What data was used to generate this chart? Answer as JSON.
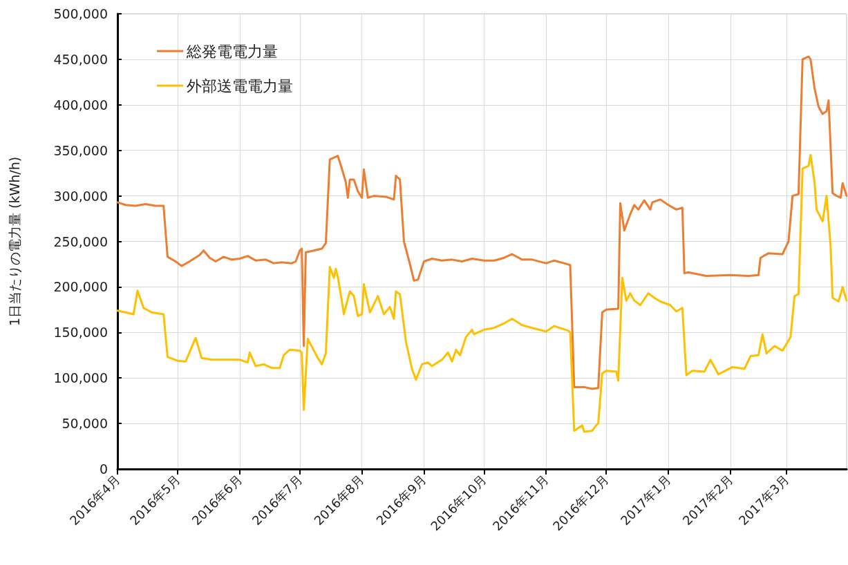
{
  "chart_data": {
    "type": "line",
    "ylabel": "1日当たりの電力量 (kWh/h)",
    "xlim": [
      "2016-04-01",
      "2017-03-31"
    ],
    "xticks": [
      {
        "value": "2016-04-01",
        "label": "2016年4月"
      },
      {
        "value": "2016-05-01",
        "label": "2016年5月"
      },
      {
        "value": "2016-06-01",
        "label": "2016年6月"
      },
      {
        "value": "2016-07-01",
        "label": "2016年7月"
      },
      {
        "value": "2016-08-01",
        "label": "2016年8月"
      },
      {
        "value": "2016-09-01",
        "label": "2016年9月"
      },
      {
        "value": "2016-10-01",
        "label": "2016年10月"
      },
      {
        "value": "2016-11-01",
        "label": "2016年11月"
      },
      {
        "value": "2016-12-01",
        "label": "2016年12月"
      },
      {
        "value": "2017-01-01",
        "label": "2017年1月"
      },
      {
        "value": "2017-02-01",
        "label": "2017年2月"
      },
      {
        "value": "2017-03-01",
        "label": "2017年3月"
      }
    ],
    "ylim": [
      0,
      500000
    ],
    "yticks": [
      0,
      {
        "value": 50000,
        "label": "50,000"
      },
      {
        "value": 100000,
        "label": "100,000"
      },
      {
        "value": 150000,
        "label": "150,000"
      },
      {
        "value": 200000,
        "label": "200,000"
      },
      {
        "value": 250000,
        "label": "250,000"
      },
      {
        "value": 300000,
        "label": "300,000"
      },
      {
        "value": 350000,
        "label": "350,000"
      },
      {
        "value": 400000,
        "label": "400,000"
      },
      {
        "value": 450000,
        "label": "450,000"
      },
      {
        "value": 500000,
        "label": "500,000"
      }
    ],
    "grid": true,
    "legend": "top left",
    "marker": "none",
    "line_style": "solid",
    "series": [
      {
        "name": "総発電電力量",
        "color": "#ed7d31",
        "x": [
          "2016-04-01",
          "2016-04-05",
          "2016-04-10",
          "2016-04-15",
          "2016-04-20",
          "2016-04-24",
          "2016-04-26",
          "2016-04-30",
          "2016-05-03",
          "2016-05-07",
          "2016-05-12",
          "2016-05-14",
          "2016-05-17",
          "2016-05-20",
          "2016-05-24",
          "2016-05-28",
          "2016-06-01",
          "2016-06-05",
          "2016-06-09",
          "2016-06-14",
          "2016-06-18",
          "2016-06-22",
          "2016-06-27",
          "2016-06-29",
          "2016-07-01",
          "2016-07-02",
          "2016-07-03",
          "2016-07-04",
          "2016-07-08",
          "2016-07-12",
          "2016-07-14",
          "2016-07-16",
          "2016-07-20",
          "2016-07-22",
          "2016-07-24",
          "2016-07-25",
          "2016-07-26",
          "2016-07-28",
          "2016-07-30",
          "2016-08-01",
          "2016-08-02",
          "2016-08-04",
          "2016-08-07",
          "2016-08-13",
          "2016-08-17",
          "2016-08-18",
          "2016-08-20",
          "2016-08-22",
          "2016-08-25",
          "2016-08-27",
          "2016-08-29",
          "2016-09-01",
          "2016-09-05",
          "2016-09-10",
          "2016-09-15",
          "2016-09-20",
          "2016-09-25",
          "2016-10-01",
          "2016-10-06",
          "2016-10-11",
          "2016-10-15",
          "2016-10-20",
          "2016-10-25",
          "2016-11-01",
          "2016-11-05",
          "2016-11-10",
          "2016-11-13",
          "2016-11-15",
          "2016-11-20",
          "2016-11-24",
          "2016-11-27",
          "2016-11-29",
          "2016-12-01",
          "2016-12-07",
          "2016-12-08",
          "2016-12-10",
          "2016-12-13",
          "2016-12-15",
          "2016-12-17",
          "2016-12-20",
          "2016-12-23",
          "2016-12-24",
          "2016-12-28",
          "2017-01-01",
          "2017-01-05",
          "2017-01-08",
          "2017-01-09",
          "2017-01-11",
          "2017-01-20",
          "2017-02-01",
          "2017-02-10",
          "2017-02-15",
          "2017-02-16",
          "2017-02-20",
          "2017-02-27",
          "2017-03-02",
          "2017-03-04",
          "2017-03-07",
          "2017-03-09",
          "2017-03-12",
          "2017-03-13",
          "2017-03-15",
          "2017-03-17",
          "2017-03-19",
          "2017-03-21",
          "2017-03-22",
          "2017-03-24",
          "2017-03-26",
          "2017-03-28",
          "2017-03-29",
          "2017-03-31"
        ],
        "values": [
          293000,
          290000,
          289000,
          291000,
          289000,
          289000,
          233000,
          228000,
          223000,
          228000,
          235000,
          240000,
          232000,
          228000,
          233000,
          230000,
          231000,
          234000,
          229000,
          230000,
          226000,
          227000,
          226000,
          228000,
          240000,
          242000,
          135000,
          238000,
          240000,
          242000,
          248000,
          340000,
          344000,
          330000,
          315000,
          298000,
          318000,
          318000,
          305000,
          298000,
          329000,
          298000,
          300000,
          299000,
          296000,
          322000,
          318000,
          250000,
          225000,
          207000,
          208000,
          228000,
          231000,
          229000,
          230000,
          228000,
          231000,
          229000,
          229000,
          232000,
          236000,
          230000,
          230000,
          226000,
          229000,
          226000,
          224000,
          90000,
          90000,
          88000,
          89000,
          172000,
          175000,
          176000,
          292000,
          262000,
          280000,
          290000,
          285000,
          295000,
          285000,
          293000,
          296000,
          290000,
          285000,
          287000,
          215000,
          216000,
          212000,
          213000,
          212000,
          213000,
          232000,
          237000,
          236000,
          250000,
          300000,
          302000,
          450000,
          453000,
          450000,
          418000,
          398000,
          390000,
          393000,
          405000,
          303000,
          300000,
          298000,
          314000,
          300000
        ]
      },
      {
        "name": "外部送電電力量",
        "color": "#ffc000",
        "x": [
          "2016-04-01",
          "2016-04-05",
          "2016-04-09",
          "2016-04-11",
          "2016-04-14",
          "2016-04-18",
          "2016-04-24",
          "2016-04-26",
          "2016-05-01",
          "2016-05-05",
          "2016-05-10",
          "2016-05-13",
          "2016-05-18",
          "2016-05-25",
          "2016-06-01",
          "2016-06-05",
          "2016-06-06",
          "2016-06-09",
          "2016-06-13",
          "2016-06-17",
          "2016-06-21",
          "2016-06-23",
          "2016-06-26",
          "2016-07-01",
          "2016-07-02",
          "2016-07-03",
          "2016-07-05",
          "2016-07-10",
          "2016-07-12",
          "2016-07-14",
          "2016-07-16",
          "2016-07-18",
          "2016-07-19",
          "2016-07-20",
          "2016-07-22",
          "2016-07-23",
          "2016-07-26",
          "2016-07-28",
          "2016-07-30",
          "2016-08-01",
          "2016-08-02",
          "2016-08-05",
          "2016-08-09",
          "2016-08-12",
          "2016-08-15",
          "2016-08-17",
          "2016-08-18",
          "2016-08-20",
          "2016-08-23",
          "2016-08-26",
          "2016-08-28",
          "2016-08-31",
          "2016-09-03",
          "2016-09-05",
          "2016-09-10",
          "2016-09-13",
          "2016-09-15",
          "2016-09-17",
          "2016-09-19",
          "2016-09-22",
          "2016-09-25",
          "2016-09-26",
          "2016-10-01",
          "2016-10-06",
          "2016-10-11",
          "2016-10-15",
          "2016-10-20",
          "2016-10-25",
          "2016-11-01",
          "2016-11-05",
          "2016-11-12",
          "2016-11-13",
          "2016-11-15",
          "2016-11-19",
          "2016-11-20",
          "2016-11-24",
          "2016-11-26",
          "2016-11-27",
          "2016-11-29",
          "2016-12-01",
          "2016-12-06",
          "2016-12-07",
          "2016-12-09",
          "2016-12-11",
          "2016-12-13",
          "2016-12-15",
          "2016-12-18",
          "2016-12-22",
          "2016-12-25",
          "2016-12-28",
          "2017-01-02",
          "2017-01-05",
          "2017-01-08",
          "2017-01-10",
          "2017-01-13",
          "2017-01-19",
          "2017-01-22",
          "2017-01-26",
          "2017-02-02",
          "2017-02-08",
          "2017-02-11",
          "2017-02-15",
          "2017-02-17",
          "2017-02-19",
          "2017-02-23",
          "2017-02-27",
          "2017-03-03",
          "2017-03-05",
          "2017-03-07",
          "2017-03-09",
          "2017-03-12",
          "2017-03-13",
          "2017-03-15",
          "2017-03-16",
          "2017-03-19",
          "2017-03-21",
          "2017-03-23",
          "2017-03-24",
          "2017-03-27",
          "2017-03-29",
          "2017-03-31"
        ],
        "values": [
          174000,
          172000,
          170000,
          196000,
          177000,
          172000,
          170000,
          123000,
          119000,
          118000,
          144000,
          122000,
          120000,
          120000,
          120000,
          117000,
          128000,
          113000,
          115000,
          111000,
          111000,
          125000,
          131000,
          130000,
          128000,
          65000,
          143000,
          122000,
          115000,
          127000,
          222000,
          210000,
          220000,
          211000,
          185000,
          170000,
          195000,
          190000,
          168000,
          170000,
          203000,
          172000,
          190000,
          170000,
          178000,
          165000,
          195000,
          192000,
          140000,
          110000,
          98000,
          115000,
          117000,
          113000,
          120000,
          128000,
          118000,
          131000,
          125000,
          145000,
          153000,
          148000,
          153000,
          155000,
          160000,
          165000,
          158000,
          155000,
          151000,
          157000,
          152000,
          150000,
          42000,
          48000,
          41000,
          42000,
          48000,
          50000,
          105000,
          108000,
          107000,
          97000,
          210000,
          185000,
          193000,
          185000,
          180000,
          193000,
          188000,
          184000,
          180000,
          173000,
          177000,
          103000,
          108000,
          107000,
          120000,
          104000,
          112000,
          110000,
          124000,
          125000,
          148000,
          127000,
          135000,
          130000,
          145000,
          190000,
          192000,
          330000,
          333000,
          345000,
          315000,
          285000,
          272000,
          300000,
          245000,
          188000,
          184000,
          200000,
          185000
        ]
      }
    ]
  }
}
